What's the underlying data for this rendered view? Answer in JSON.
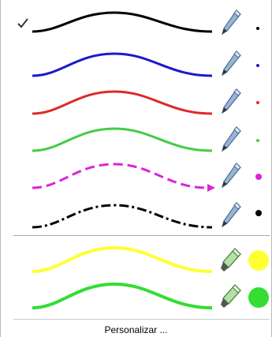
{
  "menu": {
    "pens": [
      {
        "name": "pen-black-solid",
        "color": "#000000",
        "style": "solid",
        "selected": true,
        "icon": "pen-icon",
        "dot": "small"
      },
      {
        "name": "pen-blue-solid",
        "color": "#1a1acc",
        "style": "solid",
        "selected": false,
        "icon": "pen-icon",
        "dot": "small"
      },
      {
        "name": "pen-red-solid",
        "color": "#dd2a2a",
        "style": "solid",
        "selected": false,
        "icon": "pen-icon",
        "dot": "small"
      },
      {
        "name": "pen-green-solid",
        "color": "#44cc44",
        "style": "solid",
        "selected": false,
        "icon": "pen-icon",
        "dot": "small"
      },
      {
        "name": "pen-magenta-dashed-arrow",
        "color": "#dd22dd",
        "style": "dashed-arrow",
        "selected": false,
        "icon": "pen-icon",
        "dot": "medium"
      },
      {
        "name": "pen-black-dashdot",
        "color": "#000000",
        "style": "dash-dot",
        "selected": false,
        "icon": "pen-icon",
        "dot": "medium"
      }
    ],
    "highlighters": [
      {
        "name": "highlighter-yellow",
        "color": "#ffff33",
        "icon": "highlighter-icon"
      },
      {
        "name": "highlighter-green",
        "color": "#33dd33",
        "icon": "highlighter-icon"
      }
    ],
    "customize_label": "Personalizar ..."
  }
}
